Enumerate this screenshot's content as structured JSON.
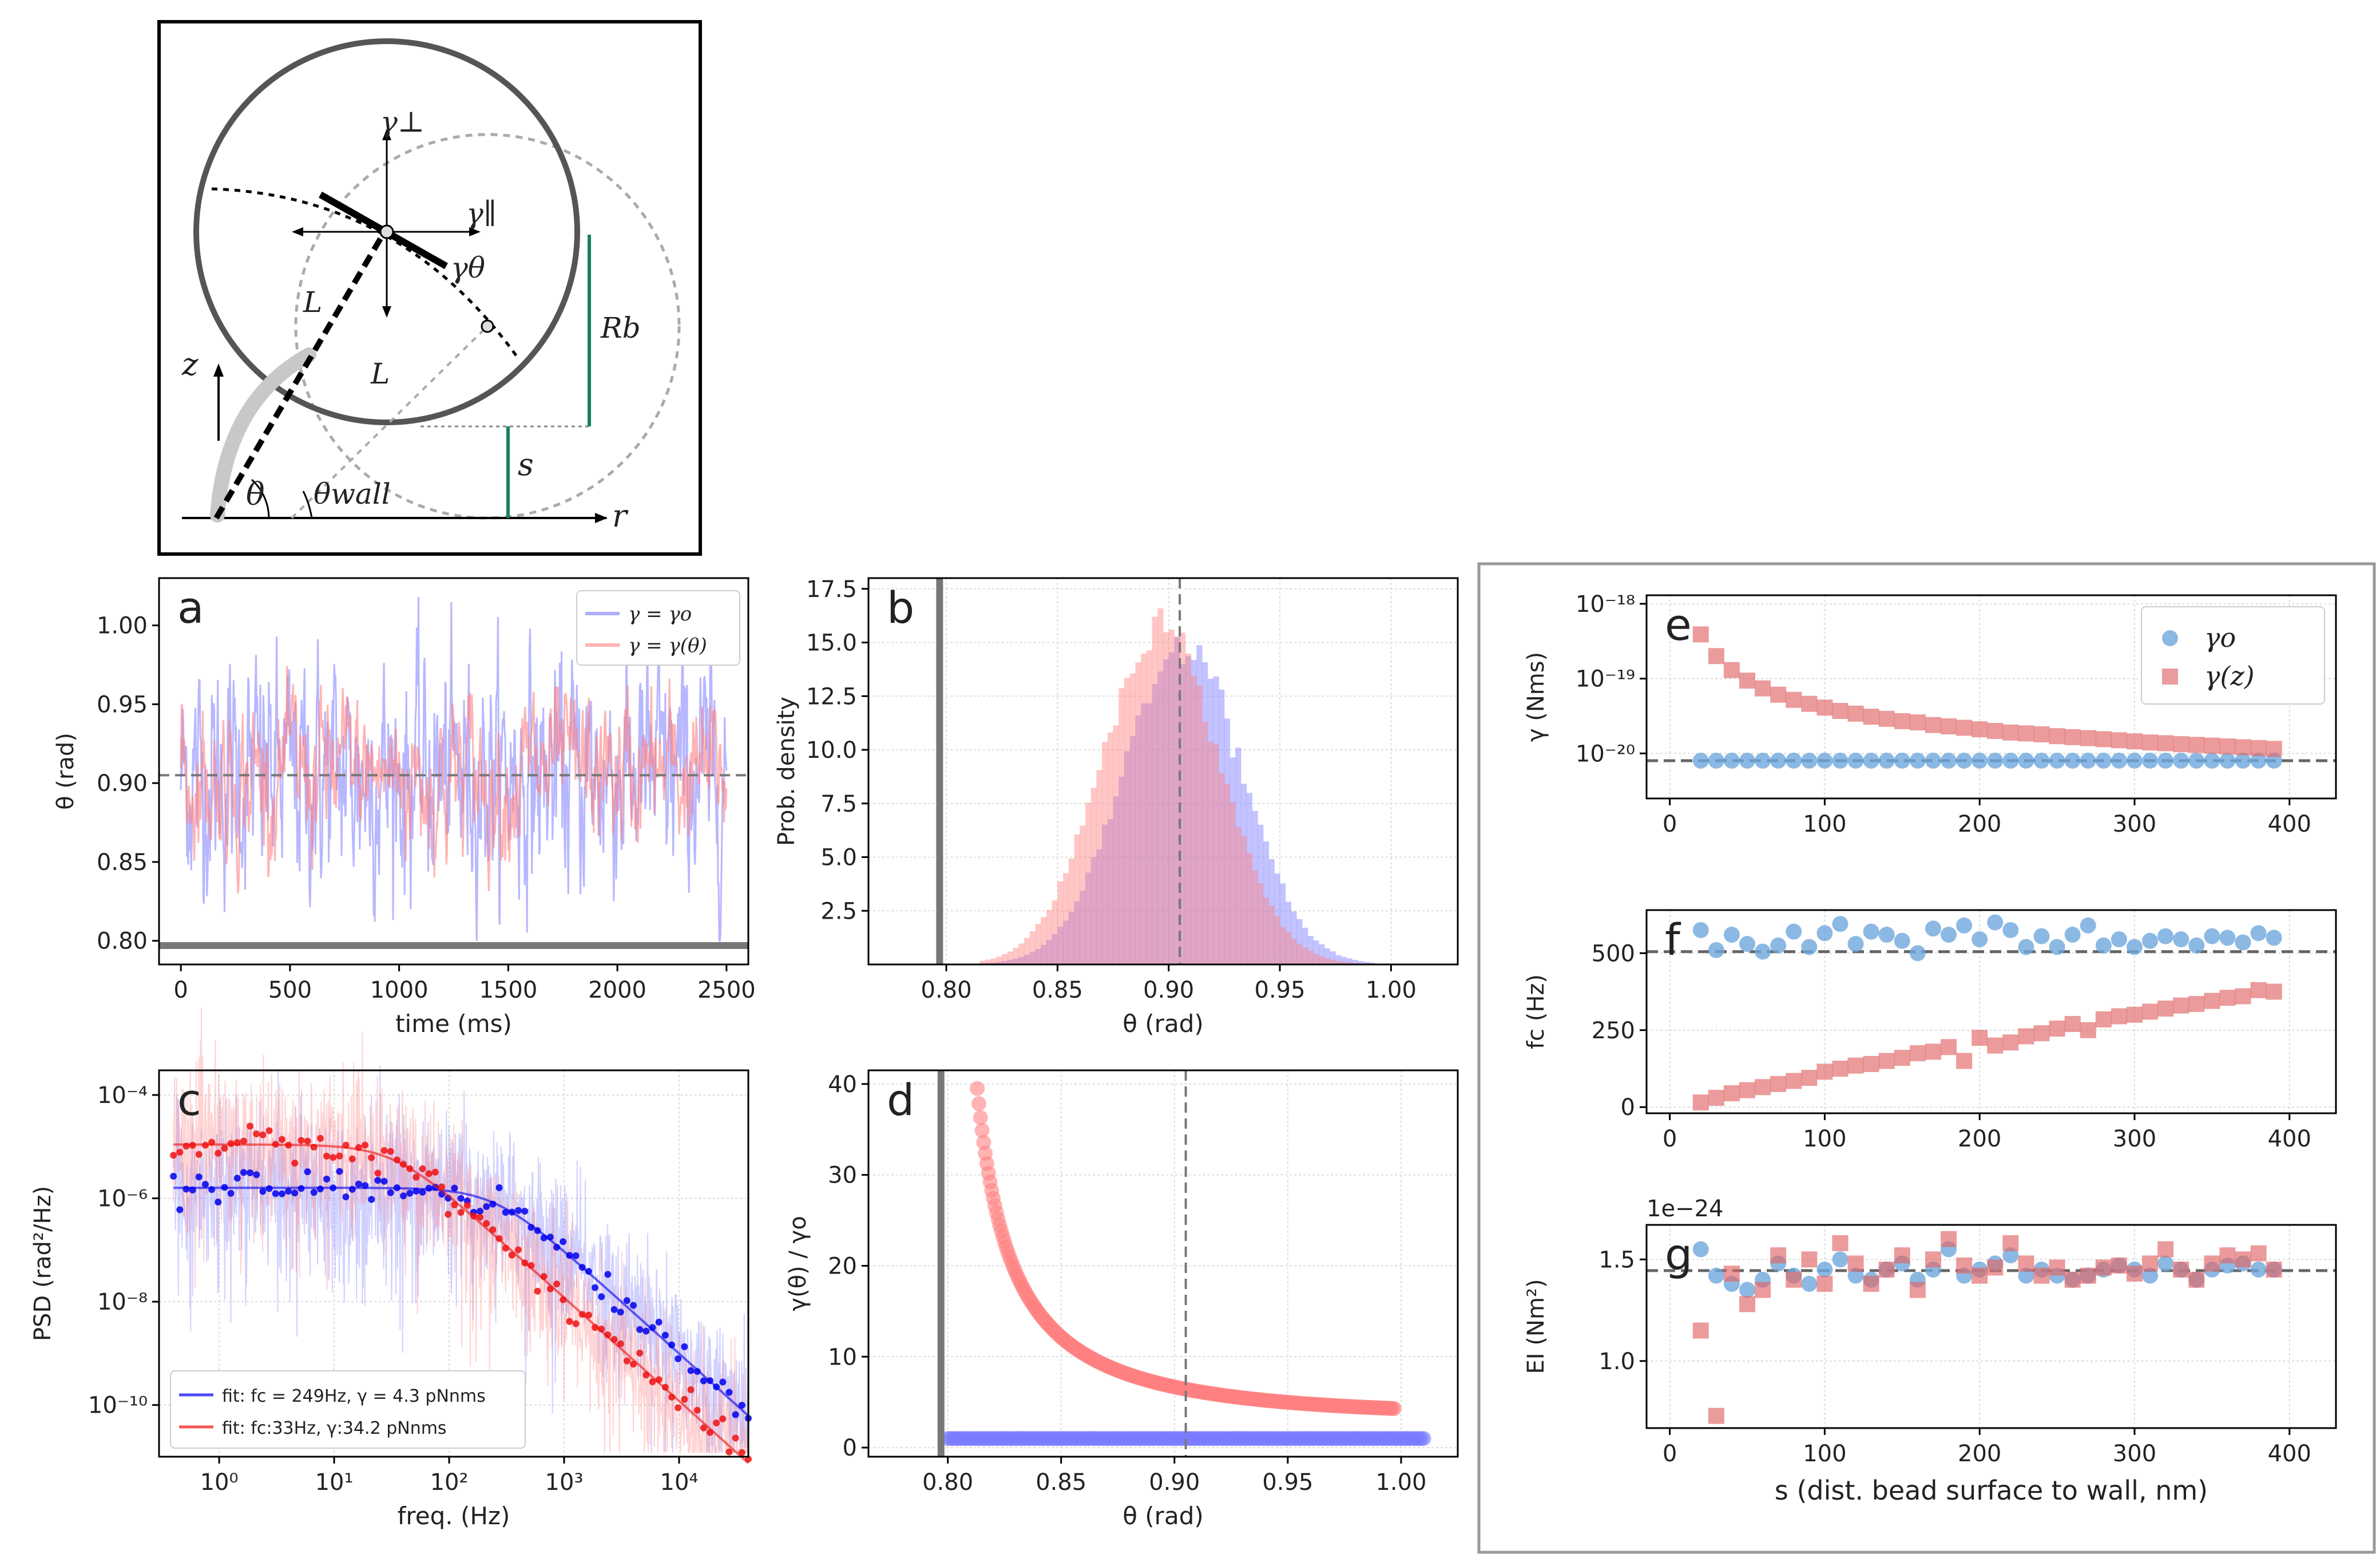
{
  "colors": {
    "gamma_const": "#7b7bff",
    "gamma_var": "#ff8080",
    "fit_blue": "#0000ee",
    "fit_red": "#ee1111",
    "gamma0_marker": "#6fa8dc",
    "gammaz_marker": "#e06666",
    "wall": "#777777",
    "green": "#1a8060"
  },
  "schematic": {
    "label_gamma_perp": "γ⊥",
    "label_gamma_par": "γ∥",
    "label_gamma_theta": "γθ",
    "label_L1": "L",
    "label_L2": "L",
    "label_Rb": "Rb",
    "label_z": "z",
    "label_r": "r",
    "label_s": "s",
    "label_theta": "θ",
    "label_theta_wall": "θwall"
  },
  "chart_data": [
    {
      "panel": "a",
      "type": "line",
      "xlabel": "time (ms)",
      "ylabel": "θ (rad)",
      "xlim": [
        -100,
        2600
      ],
      "ylim": [
        0.785,
        1.03
      ],
      "xticks": [
        "0",
        "500",
        "1000",
        "1500",
        "2000",
        "2500"
      ],
      "yticks": [
        "0.80",
        "0.85",
        "0.90",
        "0.95",
        "1.00"
      ],
      "legend": [
        "γ = γo",
        "γ = γ(θ)"
      ],
      "mean_theta": 0.905,
      "wall_theta": 0.797,
      "series": [
        {
          "name": "γ = γo",
          "mean": 0.905,
          "min": 0.8,
          "max": 1.02
        },
        {
          "name": "γ = γ(θ)",
          "mean": 0.905,
          "min": 0.83,
          "max": 0.98
        }
      ]
    },
    {
      "panel": "b",
      "type": "bar",
      "xlabel": "θ (rad)",
      "ylabel": "Prob. density",
      "xlim": [
        0.765,
        1.03
      ],
      "ylim": [
        0,
        18
      ],
      "xticks": [
        "0.80",
        "0.85",
        "0.90",
        "0.95",
        "1.00"
      ],
      "yticks": [
        "2.5",
        "5.0",
        "7.5",
        "10.0",
        "12.5",
        "15.0",
        "17.5"
      ],
      "wall_theta": 0.797,
      "mean_theta": 0.905,
      "series": [
        {
          "name": "γ = γo",
          "center": 0.905,
          "peak": 15.0
        },
        {
          "name": "γ = γ(θ)",
          "center": 0.895,
          "peak": 15.8
        }
      ]
    },
    {
      "panel": "c",
      "type": "line",
      "xlabel": "freq. (Hz)",
      "ylabel": "PSD (rad²/Hz)",
      "xscale": "log",
      "yscale": "log",
      "xlim": [
        0.3,
        40000
      ],
      "ylim": [
        1e-11,
        0.0003
      ],
      "xticks": [
        "10⁰",
        "10¹",
        "10²",
        "10³",
        "10⁴"
      ],
      "yticks": [
        "10⁻¹⁰",
        "10⁻⁸",
        "10⁻⁶",
        "10⁻⁴"
      ],
      "legend": [
        "fit: fc = 249Hz, γ = 4.3 pNnms",
        "fit: fc:33Hz, γ:34.2 pNnms"
      ],
      "series": [
        {
          "name": "fit: fc = 249Hz, γ = 4.3 pNnms",
          "fc": 249,
          "plateau": 1.6e-06
        },
        {
          "name": "fit: fc:33Hz, γ:34.2 pNnms",
          "fc": 33,
          "plateau": 1.1e-05
        }
      ]
    },
    {
      "panel": "d",
      "type": "scatter",
      "xlabel": "θ (rad)",
      "ylabel": "γ(θ) / γo",
      "xlim": [
        0.765,
        1.025
      ],
      "ylim": [
        -1,
        41.5
      ],
      "xticks": [
        "0.80",
        "0.85",
        "0.90",
        "0.95",
        "1.00"
      ],
      "yticks": [
        "0",
        "10",
        "20",
        "30",
        "40"
      ],
      "wall_theta": 0.797,
      "mean_theta": 0.905,
      "series": [
        {
          "name": "γ(θ)/γo",
          "x_start": 0.813,
          "y_start": 39.5,
          "x_end": 0.997,
          "y_end": 4.3
        },
        {
          "name": "γo/γo",
          "x_start": 0.8,
          "x_end": 1.01,
          "value": 1.0
        }
      ]
    },
    {
      "panel": "e",
      "type": "scatter",
      "xlabel": "",
      "ylabel": "γ (Nms)",
      "yscale": "log",
      "xlim": [
        -15,
        430
      ],
      "ylim": [
        2.5e-21,
        1.3e-18
      ],
      "xticks": [
        "0",
        "100",
        "200",
        "300",
        "400"
      ],
      "yticks": [
        "10⁻¹⁸",
        "10⁻¹⁹",
        "10⁻²⁰"
      ],
      "legend": [
        "γo",
        "γ(z)"
      ],
      "reference": 8e-21,
      "s": [
        20,
        30,
        40,
        50,
        60,
        70,
        80,
        90,
        100,
        110,
        120,
        130,
        140,
        150,
        160,
        170,
        180,
        190,
        200,
        210,
        220,
        230,
        240,
        250,
        260,
        270,
        280,
        290,
        300,
        310,
        320,
        330,
        340,
        350,
        360,
        370,
        380,
        390
      ],
      "series": [
        {
          "name": "γo",
          "values": [
            8e-21,
            8e-21,
            8e-21,
            8e-21,
            8e-21,
            8e-21,
            8e-21,
            8e-21,
            8e-21,
            8e-21,
            8e-21,
            8e-21,
            8e-21,
            8e-21,
            8e-21,
            8e-21,
            8e-21,
            8e-21,
            8e-21,
            8e-21,
            8e-21,
            8e-21,
            8e-21,
            8e-21,
            8e-21,
            8e-21,
            8e-21,
            8e-21,
            8e-21,
            8e-21,
            8e-21,
            8e-21,
            8e-21,
            8e-21,
            8e-21,
            8e-21,
            8e-21,
            8e-21
          ]
        },
        {
          "name": "γ(z)",
          "values": [
            3.9e-19,
            2e-19,
            1.3e-19,
            9.4e-20,
            7.4e-20,
            6.1e-20,
            5.2e-20,
            4.6e-20,
            4.1e-20,
            3.7e-20,
            3.4e-20,
            3.1e-20,
            2.9e-20,
            2.7e-20,
            2.6e-20,
            2.4e-20,
            2.3e-20,
            2.2e-20,
            2.1e-20,
            2e-20,
            1.9e-20,
            1.85e-20,
            1.8e-20,
            1.7e-20,
            1.65e-20,
            1.6e-20,
            1.55e-20,
            1.5e-20,
            1.45e-20,
            1.4e-20,
            1.37e-20,
            1.33e-20,
            1.3e-20,
            1.27e-20,
            1.24e-20,
            1.21e-20,
            1.18e-20,
            1.15e-20
          ]
        }
      ]
    },
    {
      "panel": "f",
      "type": "scatter",
      "xlabel": "",
      "ylabel": "fc (Hz)",
      "xlim": [
        -15,
        430
      ],
      "ylim": [
        -20,
        640
      ],
      "xticks": [
        "0",
        "100",
        "200",
        "300",
        "400"
      ],
      "yticks": [
        "0",
        "250",
        "500"
      ],
      "reference": 505,
      "s": [
        20,
        30,
        40,
        50,
        60,
        70,
        80,
        90,
        100,
        110,
        120,
        130,
        140,
        150,
        160,
        170,
        180,
        190,
        200,
        210,
        220,
        230,
        240,
        250,
        260,
        270,
        280,
        290,
        300,
        310,
        320,
        330,
        340,
        350,
        360,
        370,
        380,
        390
      ],
      "series": [
        {
          "name": "γo",
          "values": [
            575,
            510,
            560,
            530,
            505,
            525,
            570,
            520,
            565,
            595,
            530,
            570,
            560,
            540,
            500,
            580,
            560,
            590,
            545,
            600,
            575,
            520,
            555,
            520,
            560,
            590,
            525,
            545,
            520,
            540,
            555,
            545,
            525,
            555,
            550,
            535,
            565,
            550
          ]
        },
        {
          "name": "γ(z)",
          "values": [
            15,
            30,
            45,
            55,
            65,
            75,
            85,
            95,
            115,
            125,
            135,
            140,
            150,
            160,
            175,
            180,
            195,
            150,
            225,
            200,
            210,
            230,
            240,
            255,
            270,
            250,
            285,
            295,
            300,
            310,
            320,
            330,
            335,
            345,
            355,
            360,
            380,
            375
          ]
        }
      ]
    },
    {
      "panel": "g",
      "type": "scatter",
      "xlabel": "s (dist. bead surface to wall, nm)",
      "ylabel": "EI (Nm²)",
      "offset_label": "1e−24",
      "xlim": [
        -15,
        430
      ],
      "ylim": [
        0.67,
        1.67
      ],
      "xticks": [
        "0",
        "100",
        "200",
        "300",
        "400"
      ],
      "yticks": [
        "1.0",
        "1.5"
      ],
      "reference": 1.445,
      "s": [
        20,
        30,
        40,
        50,
        60,
        70,
        80,
        90,
        100,
        110,
        120,
        130,
        140,
        150,
        160,
        170,
        180,
        190,
        200,
        210,
        220,
        230,
        240,
        250,
        260,
        270,
        280,
        290,
        300,
        310,
        320,
        330,
        340,
        350,
        360,
        370,
        380,
        390
      ],
      "series": [
        {
          "name": "γo",
          "values": [
            1.55,
            1.42,
            1.38,
            1.35,
            1.4,
            1.48,
            1.42,
            1.38,
            1.45,
            1.5,
            1.42,
            1.4,
            1.45,
            1.48,
            1.4,
            1.45,
            1.55,
            1.42,
            1.45,
            1.48,
            1.52,
            1.42,
            1.45,
            1.42,
            1.4,
            1.42,
            1.45,
            1.47,
            1.45,
            1.42,
            1.48,
            1.45,
            1.4,
            1.45,
            1.47,
            1.48,
            1.45,
            1.45
          ]
        },
        {
          "name": "γ(z)",
          "values": [
            1.15,
            0.73,
            1.43,
            1.28,
            1.35,
            1.52,
            1.4,
            1.5,
            1.38,
            1.58,
            1.48,
            1.38,
            1.45,
            1.52,
            1.35,
            1.5,
            1.6,
            1.47,
            1.42,
            1.46,
            1.58,
            1.48,
            1.42,
            1.46,
            1.4,
            1.42,
            1.46,
            1.47,
            1.43,
            1.48,
            1.55,
            1.45,
            1.4,
            1.48,
            1.52,
            1.5,
            1.53,
            1.45
          ]
        }
      ]
    }
  ]
}
